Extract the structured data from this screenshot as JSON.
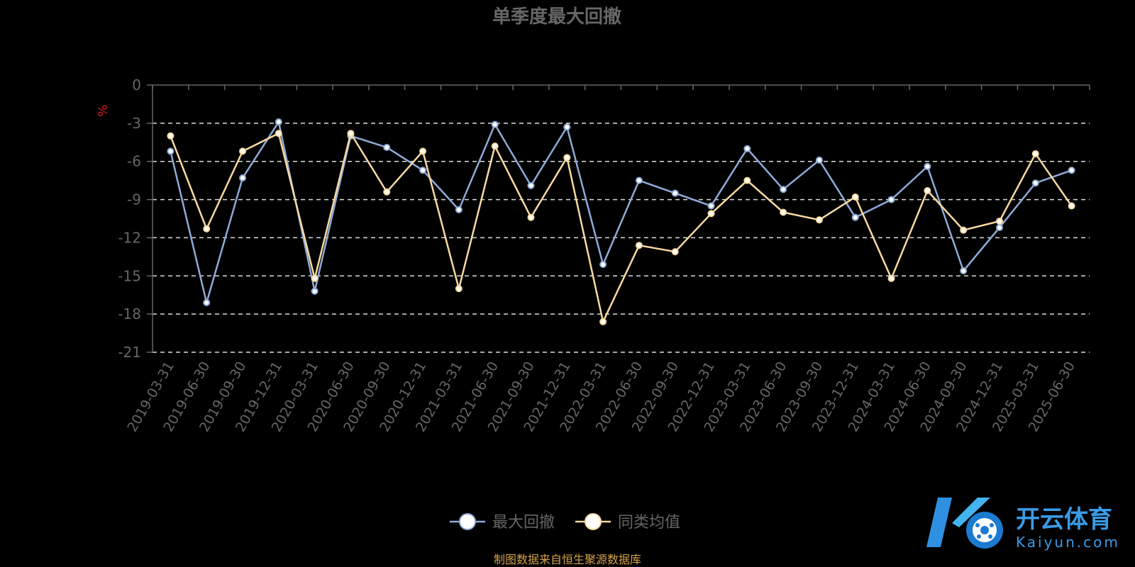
{
  "chart_data": {
    "type": "line",
    "title": "单季度最大回撤",
    "ylabel": "%",
    "xlabel": "",
    "ylim": [
      -21,
      0
    ],
    "yticks": [
      0,
      -3,
      -6,
      -9,
      -12,
      -15,
      -18,
      -21
    ],
    "grid": true,
    "legend_position": "bottom-center",
    "categories": [
      "2019-03-31",
      "2019-06-30",
      "2019-09-30",
      "2019-12-31",
      "2020-03-31",
      "2020-06-30",
      "2020-09-30",
      "2020-12-31",
      "2021-03-31",
      "2021-06-30",
      "2021-09-30",
      "2021-12-31",
      "2022-03-31",
      "2022-06-30",
      "2022-09-30",
      "2022-12-31",
      "2023-03-31",
      "2023-06-30",
      "2023-09-30",
      "2023-12-31",
      "2024-03-31",
      "2024-06-30",
      "2024-09-30",
      "2024-12-31",
      "2025-03-31",
      "2025-06-30"
    ],
    "series": [
      {
        "name": "最大回撤",
        "color": "#8eaad8",
        "values": [
          -5.2,
          -17.1,
          -7.3,
          -2.9,
          -16.2,
          -4.0,
          -4.9,
          -6.7,
          -9.8,
          -3.1,
          -7.9,
          -3.3,
          -14.1,
          -7.5,
          -8.5,
          -9.5,
          -5.0,
          -8.2,
          -5.9,
          -10.4,
          -9.0,
          -6.4,
          -14.6,
          -11.2,
          -7.7,
          -6.7
        ]
      },
      {
        "name": "同类均值",
        "color": "#f8d9a0",
        "values": [
          -4.0,
          -11.3,
          -5.2,
          -3.8,
          -15.2,
          -3.8,
          -8.4,
          -5.2,
          -16.0,
          -4.8,
          -10.4,
          -5.7,
          -18.6,
          -12.6,
          -13.1,
          -10.1,
          -7.5,
          -10.0,
          -10.6,
          -8.8,
          -15.2,
          -8.3,
          -11.4,
          -10.7,
          -5.4,
          -9.5
        ]
      }
    ]
  },
  "source_text": "制图数据来自恒生聚源数据库",
  "brand": {
    "cn": "开云体育",
    "en": "Kaiyun.com",
    "accent": "#3a9be6"
  },
  "colors": {
    "axis": "#666666",
    "grid": "#dddddd",
    "ylabel": "#cc2222"
  }
}
